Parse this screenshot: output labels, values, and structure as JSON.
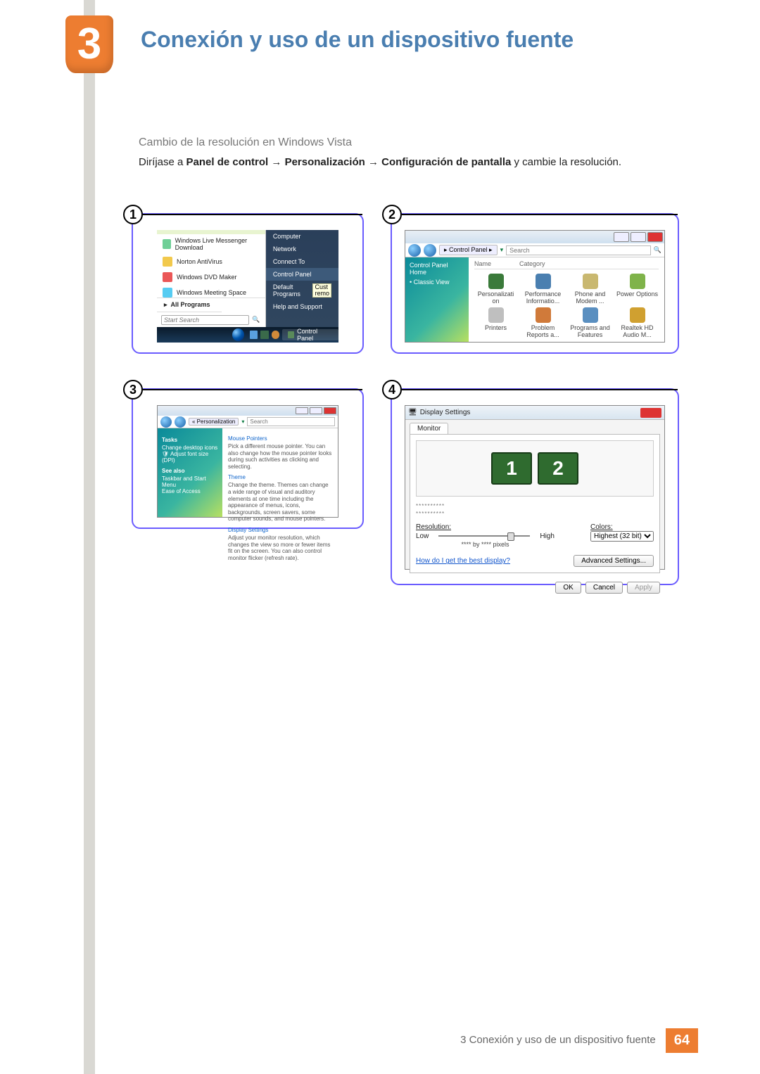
{
  "chapter": {
    "number": "3",
    "title": "Conexión y uso de un dispositivo fuente"
  },
  "section": {
    "subtitle": "Cambio de la resolución en Windows Vista"
  },
  "body": {
    "prefix": "Diríjase a ",
    "b1": "Panel de control",
    "arrow": " → ",
    "b2": "Personalización",
    "b3": "Configuración de pantalla",
    "suffix": " y cambie la resolución."
  },
  "steps": {
    "n1": "1",
    "n2": "2",
    "n3": "3",
    "n4": "4"
  },
  "shot1": {
    "tip": {
      "bg": "#e8f4d0",
      "text": ""
    },
    "menu": [
      {
        "icon_bg": "#6fcf97",
        "label": "Windows Live Messenger Download"
      },
      {
        "icon_bg": "#f2c94c",
        "label": "Norton AntiVirus"
      },
      {
        "icon_bg": "#eb5757",
        "label": "Windows DVD Maker"
      },
      {
        "icon_bg": "#56ccf2",
        "label": "Windows Meeting Space"
      }
    ],
    "all_programs_arrow": "▸",
    "all_programs": "All Programs",
    "search_placeholder": "Start Search",
    "search_icon_color": "#e08a2a",
    "right": [
      {
        "label": "Computer",
        "hl": false
      },
      {
        "label": "Network",
        "hl": false
      },
      {
        "label": "Connect To",
        "hl": false
      },
      {
        "label": "Control Panel",
        "hl": true
      },
      {
        "label": "Default Programs",
        "hl": false
      },
      {
        "label": "Help and Support",
        "hl": false
      }
    ],
    "tooltip_line1": "Cust",
    "tooltip_line2": "remo",
    "taskbar_label": "Control Panel"
  },
  "shot2": {
    "breadcrumb": "▸ Control Panel ▸",
    "search_placeholder": "Search",
    "side_items": [
      "Control Panel Home",
      "Classic View"
    ],
    "side_bullet": "•",
    "col_name": "Name",
    "col_category": "Category",
    "items": [
      {
        "label": "Personalizati on",
        "bg": "#3a7a3a"
      },
      {
        "label": "Performance Informatio...",
        "bg": "#4a7fb0"
      },
      {
        "label": "Phone and Modem ...",
        "bg": "#c9b870"
      },
      {
        "label": "Power Options",
        "bg": "#7fb34a"
      },
      {
        "label": "Printers",
        "bg": "#bfbfbf"
      },
      {
        "label": "Problem Reports a...",
        "bg": "#d07a3a"
      },
      {
        "label": "Programs and Features",
        "bg": "#5a8fc0"
      },
      {
        "label": "Realtek HD Audio M...",
        "bg": "#d0a030"
      }
    ]
  },
  "shot3": {
    "breadcrumb": "« Personalization",
    "search_placeholder": "Search",
    "tasks_header": "Tasks",
    "side_links": [
      "Change desktop icons",
      "Adjust font size (DPI)"
    ],
    "see_also": "See also",
    "see_also_links": [
      "Taskbar and Start Menu",
      "Ease of Access"
    ],
    "sections": [
      {
        "title": "Mouse Pointers",
        "body": "Pick a different mouse pointer. You can also change how the mouse pointer looks during such activities as clicking and selecting."
      },
      {
        "title": "Theme",
        "body": "Change the theme. Themes can change a wide range of visual and auditory elements at one time including the appearance of menus, icons, backgrounds, screen savers, some computer sounds, and mouse pointers."
      },
      {
        "title": "Display Settings",
        "body": "Adjust your monitor resolution, which changes the view so more or fewer items fit on the screen. You can also control monitor flicker (refresh rate)."
      }
    ]
  },
  "shot4": {
    "window_title": "Display Settings",
    "tab": "Monitor",
    "mon1": "1",
    "mon2": "2",
    "checkbox_placeholder1": "**********",
    "checkbox_placeholder2": "**********",
    "resolution_label": "Resolution:",
    "low": "Low",
    "high": "High",
    "pixels_text": "**** by **** pixels",
    "colors_label": "Colors:",
    "colors_value": "Highest (32 bit)",
    "help_link": "How do I get the best display?",
    "advanced_btn": "Advanced Settings...",
    "ok": "OK",
    "cancel": "Cancel",
    "apply": "Apply"
  },
  "footer": {
    "text": "3 Conexión y uso de un dispositivo fuente",
    "page": "64"
  }
}
